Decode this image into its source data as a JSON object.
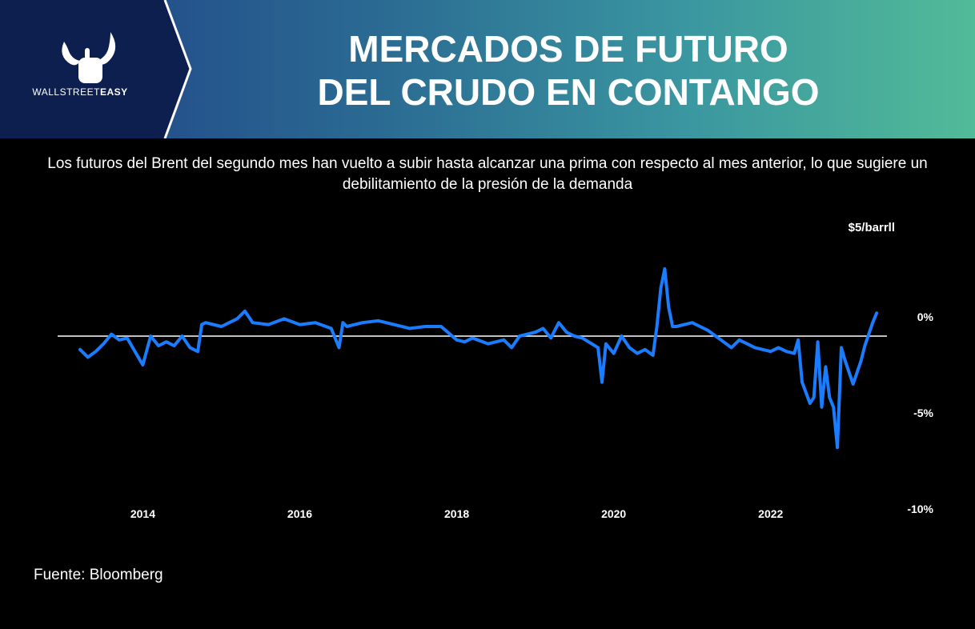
{
  "header": {
    "brand_regular": "WALLSTREET",
    "brand_bold": "EASY",
    "title_line1": "MERCADOS DE FUTURO",
    "title_line2": "DEL CRUDO EN CONTANGO",
    "bg_left": "#1f3f86",
    "bg_right": "#52bb98",
    "logo_panel_color": "#0d1f4f"
  },
  "subtitle": "Los futuros del Brent del segundo mes han vuelto a subir hasta alcanzar una prima con respecto al mes anterior, lo que sugiere un debilitamiento de la presión de la demanda",
  "unit_label": "$5/barrll",
  "source": "Fuente: Bloomberg",
  "chart_data": {
    "type": "line",
    "title": "",
    "xlabel": "",
    "ylabel": "$5/barrll",
    "x_ticks": [
      "2014",
      "2016",
      "2018",
      "2020",
      "2022"
    ],
    "y_ticks": [
      "0%",
      "-5%",
      "-10%"
    ],
    "y_tick_values": [
      0,
      -5,
      -10
    ],
    "xlim": [
      2013.2,
      2023.4
    ],
    "ylim": [
      -10,
      5
    ],
    "grid": false,
    "reference_line": {
      "y": -1,
      "color": "#ffffff"
    },
    "line_color": "#1a7cff",
    "series": [
      {
        "name": "",
        "x": [
          2013.2,
          2013.3,
          2013.4,
          2013.5,
          2013.6,
          2013.7,
          2013.8,
          2013.9,
          2014.0,
          2014.1,
          2014.2,
          2014.3,
          2014.4,
          2014.5,
          2014.6,
          2014.7,
          2014.75,
          2014.8,
          2015.0,
          2015.2,
          2015.3,
          2015.4,
          2015.6,
          2015.8,
          2016.0,
          2016.2,
          2016.4,
          2016.5,
          2016.55,
          2016.6,
          2016.8,
          2017.0,
          2017.2,
          2017.4,
          2017.6,
          2017.8,
          2018.0,
          2018.1,
          2018.2,
          2018.4,
          2018.6,
          2018.7,
          2018.8,
          2019.0,
          2019.1,
          2019.2,
          2019.3,
          2019.4,
          2019.5,
          2019.6,
          2019.8,
          2019.85,
          2019.9,
          2020.0,
          2020.1,
          2020.2,
          2020.3,
          2020.4,
          2020.5,
          2020.55,
          2020.6,
          2020.65,
          2020.7,
          2020.75,
          2020.8,
          2020.9,
          2021.0,
          2021.1,
          2021.2,
          2021.3,
          2021.4,
          2021.5,
          2021.6,
          2021.7,
          2021.8,
          2021.9,
          2022.0,
          2022.1,
          2022.2,
          2022.3,
          2022.35,
          2022.4,
          2022.5,
          2022.55,
          2022.6,
          2022.65,
          2022.7,
          2022.75,
          2022.8,
          2022.85,
          2022.9,
          2022.95,
          2023.0,
          2023.05,
          2023.1,
          2023.15,
          2023.2,
          2023.25,
          2023.3,
          2023.35
        ],
        "y": [
          -1.7,
          -2.1,
          -1.8,
          -1.4,
          -0.9,
          -1.2,
          -1.1,
          -1.8,
          -2.5,
          -1.0,
          -1.5,
          -1.3,
          -1.5,
          -1.0,
          -1.6,
          -1.8,
          -0.4,
          -0.3,
          -0.5,
          -0.1,
          0.3,
          -0.3,
          -0.4,
          -0.1,
          -0.4,
          -0.3,
          -0.6,
          -1.6,
          -0.3,
          -0.5,
          -0.3,
          -0.2,
          -0.4,
          -0.6,
          -0.5,
          -0.5,
          -1.2,
          -1.3,
          -1.1,
          -1.4,
          -1.2,
          -1.6,
          -1.0,
          -0.8,
          -0.6,
          -1.1,
          -0.3,
          -0.8,
          -1.0,
          -1.1,
          -1.6,
          -3.4,
          -1.4,
          -1.9,
          -1.0,
          -1.6,
          -1.9,
          -1.7,
          -2.0,
          -0.5,
          1.5,
          2.5,
          0.5,
          -0.5,
          -0.5,
          -0.4,
          -0.3,
          -0.5,
          -0.7,
          -1.0,
          -1.3,
          -1.6,
          -1.2,
          -1.4,
          -1.6,
          -1.7,
          -1.8,
          -1.6,
          -1.8,
          -1.9,
          -1.2,
          -3.4,
          -4.5,
          -4.2,
          -1.3,
          -4.7,
          -2.6,
          -4.2,
          -4.7,
          -6.8,
          -1.6,
          -2.3,
          -2.9,
          -3.5,
          -2.9,
          -2.3,
          -1.5,
          -0.9,
          -0.3,
          0.2
        ]
      }
    ]
  }
}
